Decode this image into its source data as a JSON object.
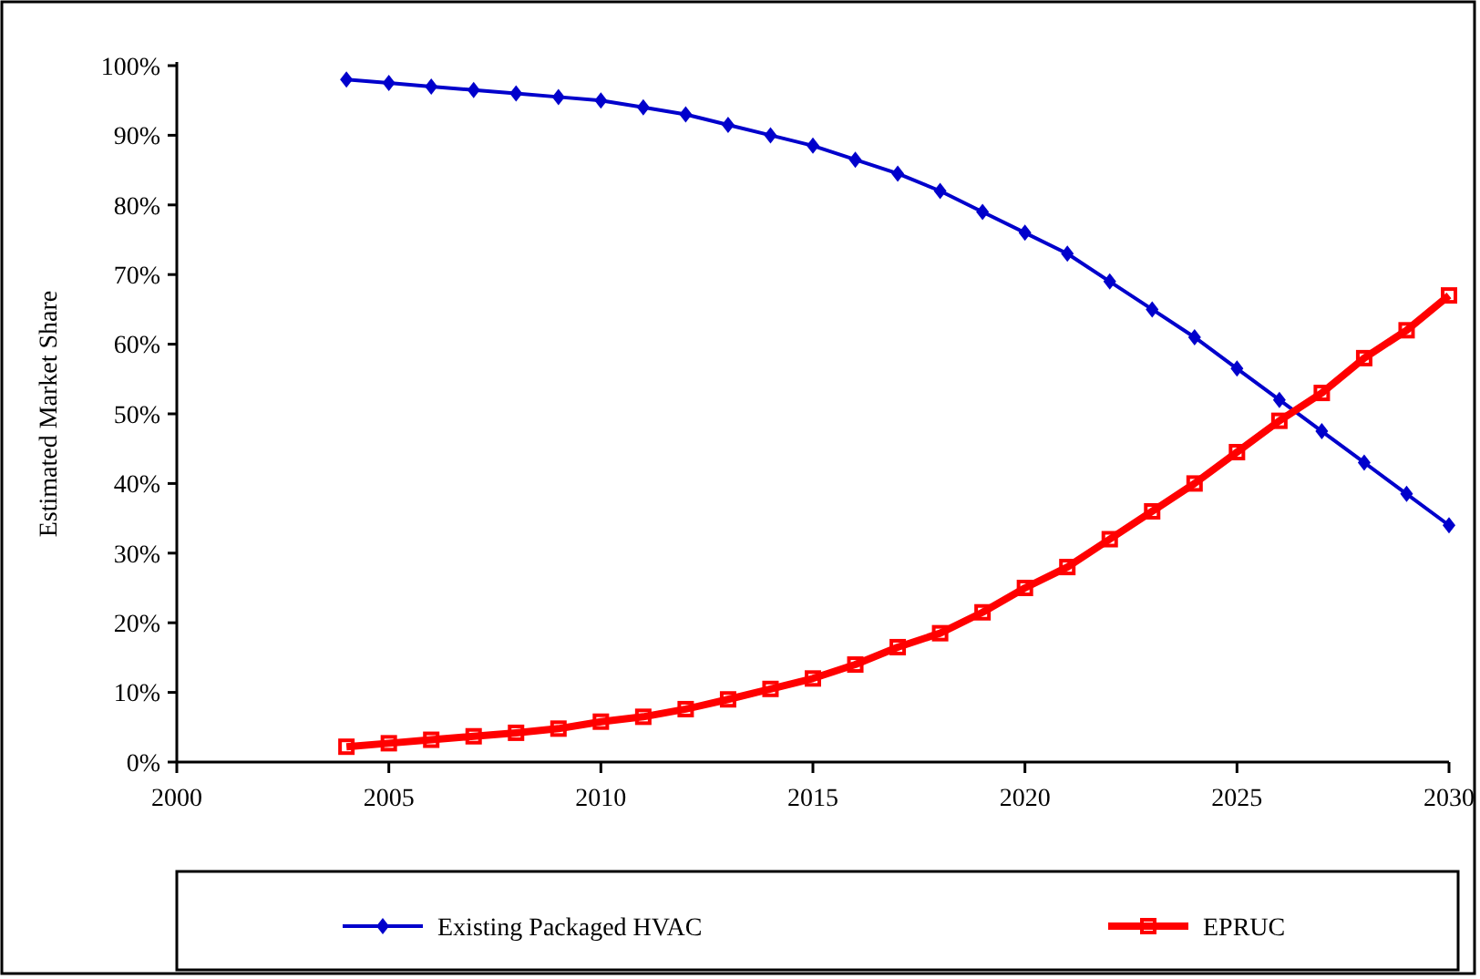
{
  "chart_data": {
    "type": "line",
    "ylabel": "Estimated Market Share",
    "x": [
      2004,
      2005,
      2006,
      2007,
      2008,
      2009,
      2010,
      2011,
      2012,
      2013,
      2014,
      2015,
      2016,
      2017,
      2018,
      2019,
      2020,
      2021,
      2022,
      2023,
      2024,
      2025,
      2026,
      2027,
      2028,
      2029,
      2030
    ],
    "series": [
      {
        "name": "Existing Packaged HVAC",
        "color": "#0000cc",
        "marker": "diamond",
        "values": [
          98,
          97.5,
          97,
          96.5,
          96,
          95.5,
          95,
          94,
          93,
          91.5,
          90,
          88.5,
          86.5,
          84.5,
          82,
          79,
          76,
          73,
          69,
          65,
          61,
          56.5,
          52,
          47.5,
          43,
          38.5,
          34
        ]
      },
      {
        "name": "EPRUC",
        "color": "#ff0000",
        "marker": "square",
        "values": [
          2.2,
          2.7,
          3.2,
          3.7,
          4.2,
          4.8,
          5.8,
          6.5,
          7.6,
          9,
          10.5,
          12,
          14,
          16.5,
          18.5,
          21.5,
          25,
          28,
          32,
          36,
          40,
          44.5,
          49,
          53,
          58,
          62,
          67
        ]
      }
    ],
    "xlim": [
      2000,
      2030
    ],
    "xticks": [
      2000,
      2005,
      2010,
      2015,
      2020,
      2025,
      2030
    ],
    "ylim": [
      0,
      100
    ],
    "yticks": [
      {
        "value": 0,
        "label": "0%"
      },
      {
        "value": 10,
        "label": "10%"
      },
      {
        "value": 20,
        "label": "20%"
      },
      {
        "value": 30,
        "label": "30%"
      },
      {
        "value": 40,
        "label": "40%"
      },
      {
        "value": 50,
        "label": "50%"
      },
      {
        "value": 60,
        "label": "60%"
      },
      {
        "value": 70,
        "label": "70%"
      },
      {
        "value": 80,
        "label": "80%"
      },
      {
        "value": 90,
        "label": "90%"
      },
      {
        "value": 100,
        "label": "100%"
      }
    ],
    "grid": false,
    "legend": "bottom"
  }
}
